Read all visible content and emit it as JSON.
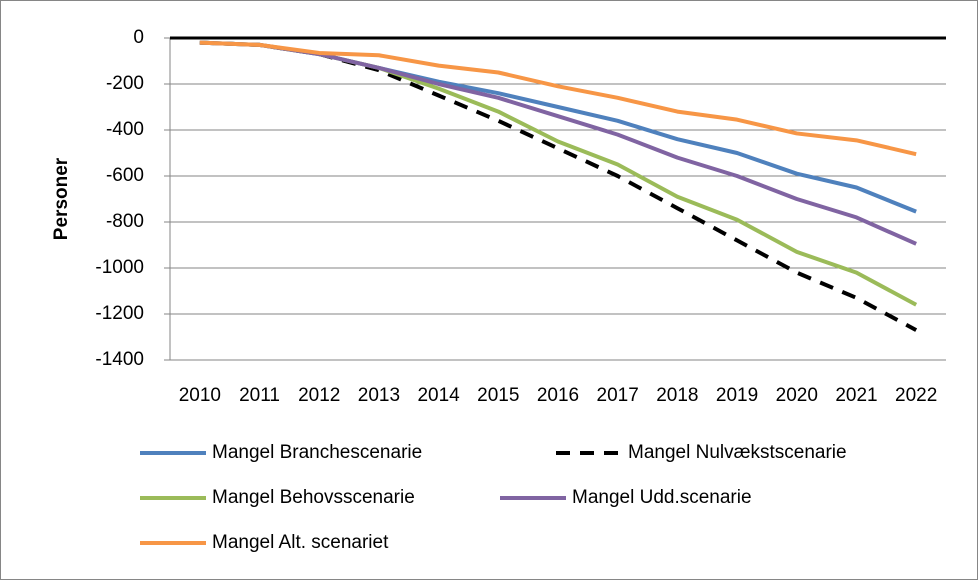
{
  "chart_data": {
    "type": "line",
    "y_label": "Personer",
    "categories": [
      "2010",
      "2011",
      "2012",
      "2013",
      "2014",
      "2015",
      "2016",
      "2017",
      "2018",
      "2019",
      "2020",
      "2021",
      "2022"
    ],
    "series": [
      {
        "name": "Mangel Branchescenarie",
        "color": "#4f81bd",
        "dashed": false,
        "values": [
          -20,
          -30,
          -70,
          -130,
          -190,
          -240,
          -300,
          -360,
          -440,
          -500,
          -590,
          -650,
          -755
        ]
      },
      {
        "name": "Mangel Nulvækstscenarie",
        "color": "#000000",
        "dashed": true,
        "values": [
          -20,
          -30,
          -70,
          -140,
          -250,
          -360,
          -480,
          -600,
          -740,
          -880,
          -1020,
          -1130,
          -1270
        ]
      },
      {
        "name": "Mangel Behovsscenarie",
        "color": "#9bbb59",
        "dashed": false,
        "values": [
          -20,
          -30,
          -70,
          -130,
          -220,
          -320,
          -450,
          -550,
          -690,
          -790,
          -930,
          -1020,
          -1160
        ]
      },
      {
        "name": "Mangel Udd.scenarie",
        "color": "#8064a2",
        "dashed": false,
        "values": [
          -20,
          -30,
          -70,
          -130,
          -200,
          -260,
          -340,
          -420,
          -520,
          -600,
          -700,
          -780,
          -895
        ]
      },
      {
        "name": "Mangel Alt. scenariet",
        "color": "#f79646",
        "dashed": false,
        "values": [
          -20,
          -30,
          -65,
          -75,
          -120,
          -150,
          -210,
          -260,
          -320,
          -355,
          -415,
          -445,
          -505
        ]
      }
    ],
    "ylim": [
      -1400,
      0
    ],
    "yticks": [
      0,
      -200,
      -400,
      -600,
      -800,
      -1000,
      -1200,
      -1400
    ],
    "grid": true
  }
}
